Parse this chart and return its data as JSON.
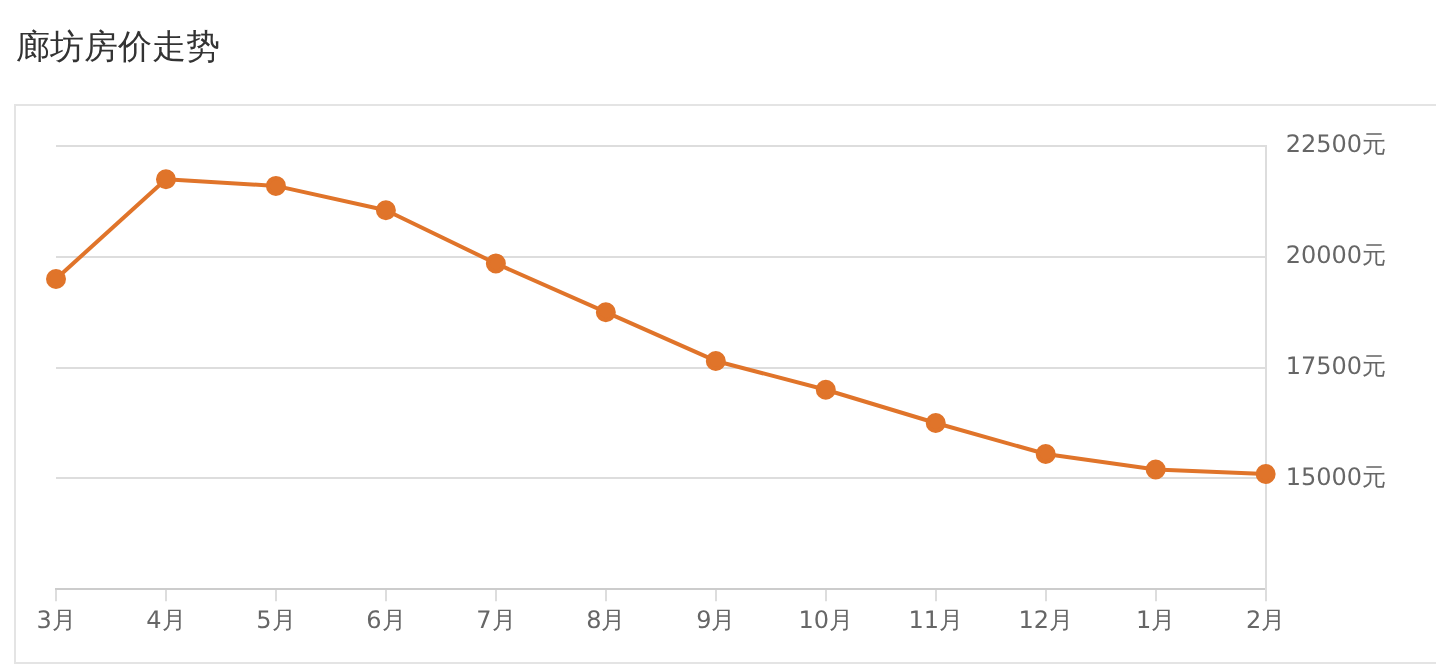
{
  "chart_data": {
    "type": "line",
    "title": "廊坊房价走势",
    "categories": [
      "3月",
      "4月",
      "5月",
      "6月",
      "7月",
      "8月",
      "9月",
      "10月",
      "11月",
      "12月",
      "1月",
      "2月"
    ],
    "series": [
      {
        "color": "#e0742a",
        "values": [
          19500,
          21750,
          21600,
          21050,
          19850,
          18750,
          17650,
          17000,
          16250,
          15550,
          15200,
          15100
        ]
      }
    ],
    "ylim": [
      12500,
      22500
    ],
    "yticks": [
      {
        "value": 12500,
        "label": null
      },
      {
        "value": 15000,
        "label": "15000元"
      },
      {
        "value": 17500,
        "label": "17500元"
      },
      {
        "value": 20000,
        "label": "20000元"
      },
      {
        "value": 22500,
        "label": "22500元"
      }
    ],
    "grid": "y",
    "legend": false,
    "marker": "circle",
    "line_style": "solid"
  }
}
